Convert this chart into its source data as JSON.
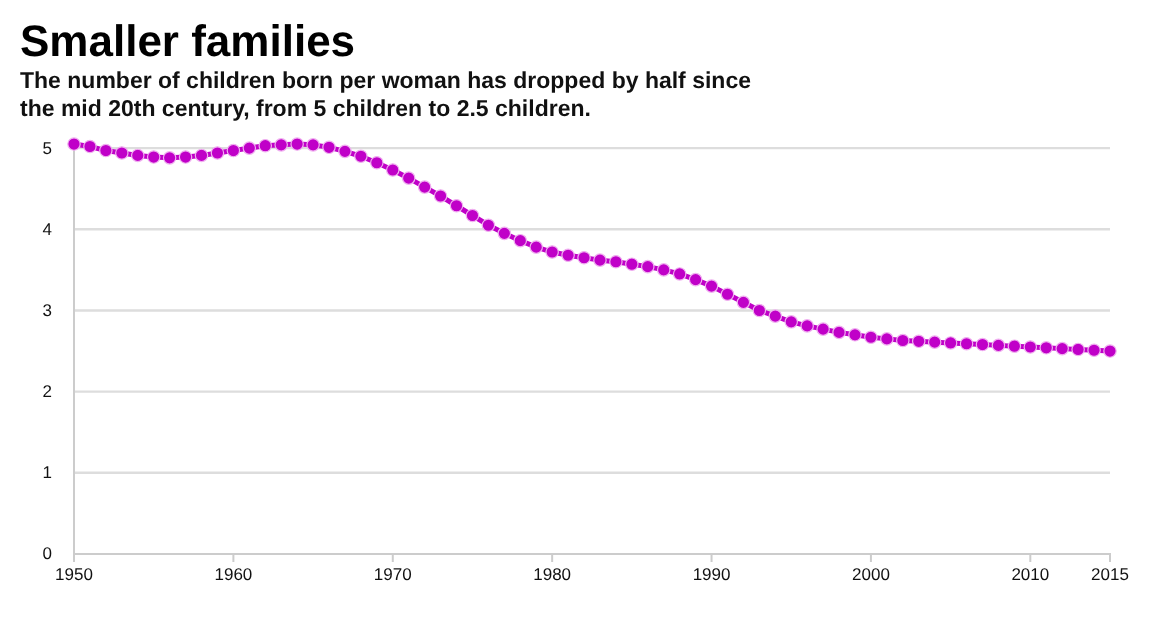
{
  "chart_data": {
    "type": "line",
    "title": "Smaller families",
    "subtitle": "The number of children born per woman has dropped by half since the mid 20th century, from 5 children to 2.5 children.",
    "x": [
      1950,
      1951,
      1952,
      1953,
      1954,
      1955,
      1956,
      1957,
      1958,
      1959,
      1960,
      1961,
      1962,
      1963,
      1964,
      1965,
      1966,
      1967,
      1968,
      1969,
      1970,
      1971,
      1972,
      1973,
      1974,
      1975,
      1976,
      1977,
      1978,
      1979,
      1980,
      1981,
      1982,
      1983,
      1984,
      1985,
      1986,
      1987,
      1988,
      1989,
      1990,
      1991,
      1992,
      1993,
      1994,
      1995,
      1996,
      1997,
      1998,
      1999,
      2000,
      2001,
      2002,
      2003,
      2004,
      2005,
      2006,
      2007,
      2008,
      2009,
      2010,
      2011,
      2012,
      2013,
      2014,
      2015
    ],
    "series": [
      {
        "color": "#c000c8",
        "values": [
          5.05,
          5.02,
          4.97,
          4.94,
          4.91,
          4.89,
          4.88,
          4.89,
          4.91,
          4.94,
          4.97,
          5.0,
          5.03,
          5.04,
          5.05,
          5.04,
          5.01,
          4.96,
          4.9,
          4.82,
          4.73,
          4.63,
          4.52,
          4.41,
          4.29,
          4.17,
          4.05,
          3.95,
          3.86,
          3.78,
          3.72,
          3.68,
          3.65,
          3.62,
          3.6,
          3.57,
          3.54,
          3.5,
          3.45,
          3.38,
          3.3,
          3.2,
          3.1,
          3.0,
          2.93,
          2.86,
          2.81,
          2.77,
          2.73,
          2.7,
          2.67,
          2.65,
          2.63,
          2.62,
          2.61,
          2.6,
          2.59,
          2.58,
          2.57,
          2.56,
          2.55,
          2.54,
          2.53,
          2.52,
          2.51,
          2.5
        ]
      }
    ],
    "xlim": [
      1950,
      2015
    ],
    "xticks": [
      1950,
      1960,
      1970,
      1980,
      1990,
      2000,
      2010,
      2015
    ],
    "ylim": [
      0,
      5.1
    ],
    "yticks": [
      0,
      1,
      2,
      3,
      4,
      5
    ],
    "grid": "y",
    "marker": "circle",
    "line_style": "solid"
  }
}
